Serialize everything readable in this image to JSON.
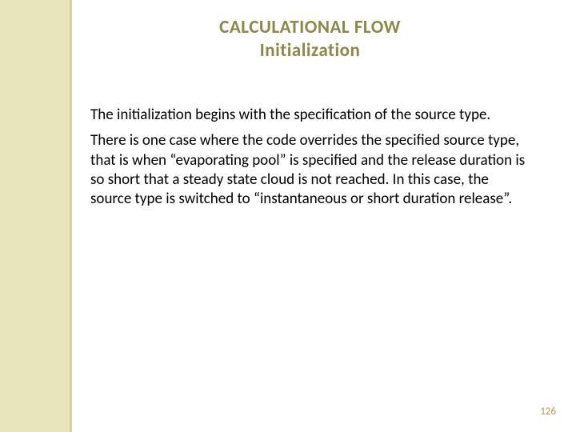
{
  "decoration": {
    "sidebar_bg": "#e8e5bd",
    "sidebar_border": "#d8d39a"
  },
  "title": {
    "line1": "CALCULATIONAL FLOW",
    "line2": "Initialization",
    "color": "#8a8947",
    "fontsize": 23
  },
  "body": {
    "paragraphs": [
      "The initialization begins with the specification of the source type.",
      "There is one case where the code overrides the specified source type, that is when “evaporating pool” is specified and the release duration is so short that a steady state cloud is not reached. In this case, the source type is switched to “instantaneous or short duration release”."
    ],
    "fontsize": 19,
    "color": "#000000"
  },
  "page_number": {
    "value": "126",
    "color": "#c49256",
    "fontsize": 13
  },
  "background_color": "#ffffff"
}
